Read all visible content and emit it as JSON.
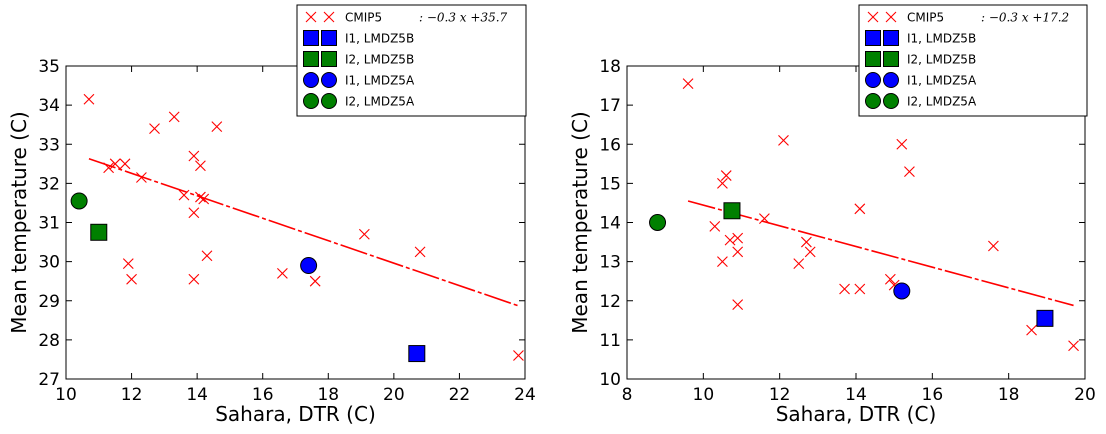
{
  "chart_data": [
    {
      "type": "scatter",
      "xlabel": "Sahara, DTR (C)",
      "ylabel": "Mean temperature (C)",
      "xlim": [
        10,
        24
      ],
      "ylim": [
        27,
        35
      ],
      "xticks": [
        "10",
        "12",
        "14",
        "16",
        "18",
        "20",
        "22",
        "24"
      ],
      "yticks": [
        "27",
        "28",
        "29",
        "30",
        "31",
        "32",
        "33",
        "34",
        "35"
      ],
      "legend_position": "top-right",
      "series": [
        {
          "name": "CMIP5",
          "fit_label": ":   −0.3 x +35.7",
          "marker": "x",
          "color": "#ff0000",
          "points": [
            [
              10.7,
              34.15
            ],
            [
              11.3,
              32.4
            ],
            [
              11.5,
              32.5
            ],
            [
              11.8,
              32.5
            ],
            [
              11.9,
              29.95
            ],
            [
              12.0,
              29.55
            ],
            [
              12.3,
              32.15
            ],
            [
              12.7,
              33.4
            ],
            [
              13.3,
              33.7
            ],
            [
              13.6,
              31.7
            ],
            [
              13.9,
              31.25
            ],
            [
              13.9,
              29.55
            ],
            [
              13.9,
              32.7
            ],
            [
              14.1,
              31.65
            ],
            [
              14.1,
              32.45
            ],
            [
              14.2,
              31.6
            ],
            [
              14.3,
              30.15
            ],
            [
              14.6,
              33.45
            ],
            [
              16.6,
              29.7
            ],
            [
              17.6,
              29.5
            ],
            [
              19.1,
              30.7
            ],
            [
              20.8,
              30.25
            ],
            [
              23.8,
              27.6
            ]
          ],
          "fit_line": [
            [
              10.7,
              32.63
            ],
            [
              23.8,
              28.87
            ]
          ]
        },
        {
          "name": "I1, LMDZ5B",
          "marker": "square",
          "color": "#0000ff",
          "points": [
            [
              20.7,
              27.65
            ]
          ]
        },
        {
          "name": "I2, LMDZ5B",
          "marker": "square",
          "color": "#008000",
          "points": [
            [
              11.0,
              30.75
            ]
          ]
        },
        {
          "name": "I1, LMDZ5A",
          "marker": "circle",
          "color": "#0000ff",
          "points": [
            [
              17.4,
              29.9
            ]
          ]
        },
        {
          "name": "I2, LMDZ5A",
          "marker": "circle",
          "color": "#008000",
          "points": [
            [
              10.4,
              31.55
            ]
          ]
        }
      ]
    },
    {
      "type": "scatter",
      "xlabel": "Sahara, DTR (C)",
      "ylabel": "Mean temperature (C)",
      "xlim": [
        8,
        20
      ],
      "ylim": [
        10,
        18
      ],
      "xticks": [
        "8",
        "10",
        "12",
        "14",
        "16",
        "18",
        "20"
      ],
      "yticks": [
        "10",
        "11",
        "12",
        "13",
        "14",
        "15",
        "16",
        "17",
        "18"
      ],
      "legend_position": "top-right",
      "series": [
        {
          "name": "CMIP5",
          "fit_label": ":   −0.3 x +17.2",
          "marker": "x",
          "color": "#ff0000",
          "points": [
            [
              9.6,
              17.55
            ],
            [
              10.3,
              13.9
            ],
            [
              10.5,
              13.0
            ],
            [
              10.5,
              15.0
            ],
            [
              10.6,
              15.2
            ],
            [
              10.7,
              13.55
            ],
            [
              10.9,
              13.6
            ],
            [
              10.9,
              13.25
            ],
            [
              10.9,
              11.9
            ],
            [
              11.6,
              14.1
            ],
            [
              12.1,
              16.1
            ],
            [
              12.5,
              12.95
            ],
            [
              12.7,
              13.5
            ],
            [
              12.8,
              13.25
            ],
            [
              13.7,
              12.3
            ],
            [
              14.1,
              12.3
            ],
            [
              14.1,
              14.35
            ],
            [
              14.9,
              12.55
            ],
            [
              15.0,
              12.4
            ],
            [
              15.2,
              16.0
            ],
            [
              15.4,
              15.3
            ],
            [
              17.6,
              13.4
            ],
            [
              18.6,
              11.25
            ],
            [
              19.7,
              10.85
            ]
          ],
          "fit_line": [
            [
              9.6,
              14.55
            ],
            [
              19.7,
              11.88
            ]
          ]
        },
        {
          "name": "I1, LMDZ5B",
          "marker": "square",
          "color": "#0000ff",
          "points": [
            [
              18.95,
              11.55
            ]
          ]
        },
        {
          "name": "I2, LMDZ5B",
          "marker": "square",
          "color": "#008000",
          "points": [
            [
              10.75,
              14.3
            ]
          ]
        },
        {
          "name": "I1, LMDZ5A",
          "marker": "circle",
          "color": "#0000ff",
          "points": [
            [
              15.2,
              12.25
            ]
          ]
        },
        {
          "name": "I2, LMDZ5A",
          "marker": "circle",
          "color": "#008000",
          "points": [
            [
              8.8,
              14.0
            ]
          ]
        }
      ]
    }
  ]
}
